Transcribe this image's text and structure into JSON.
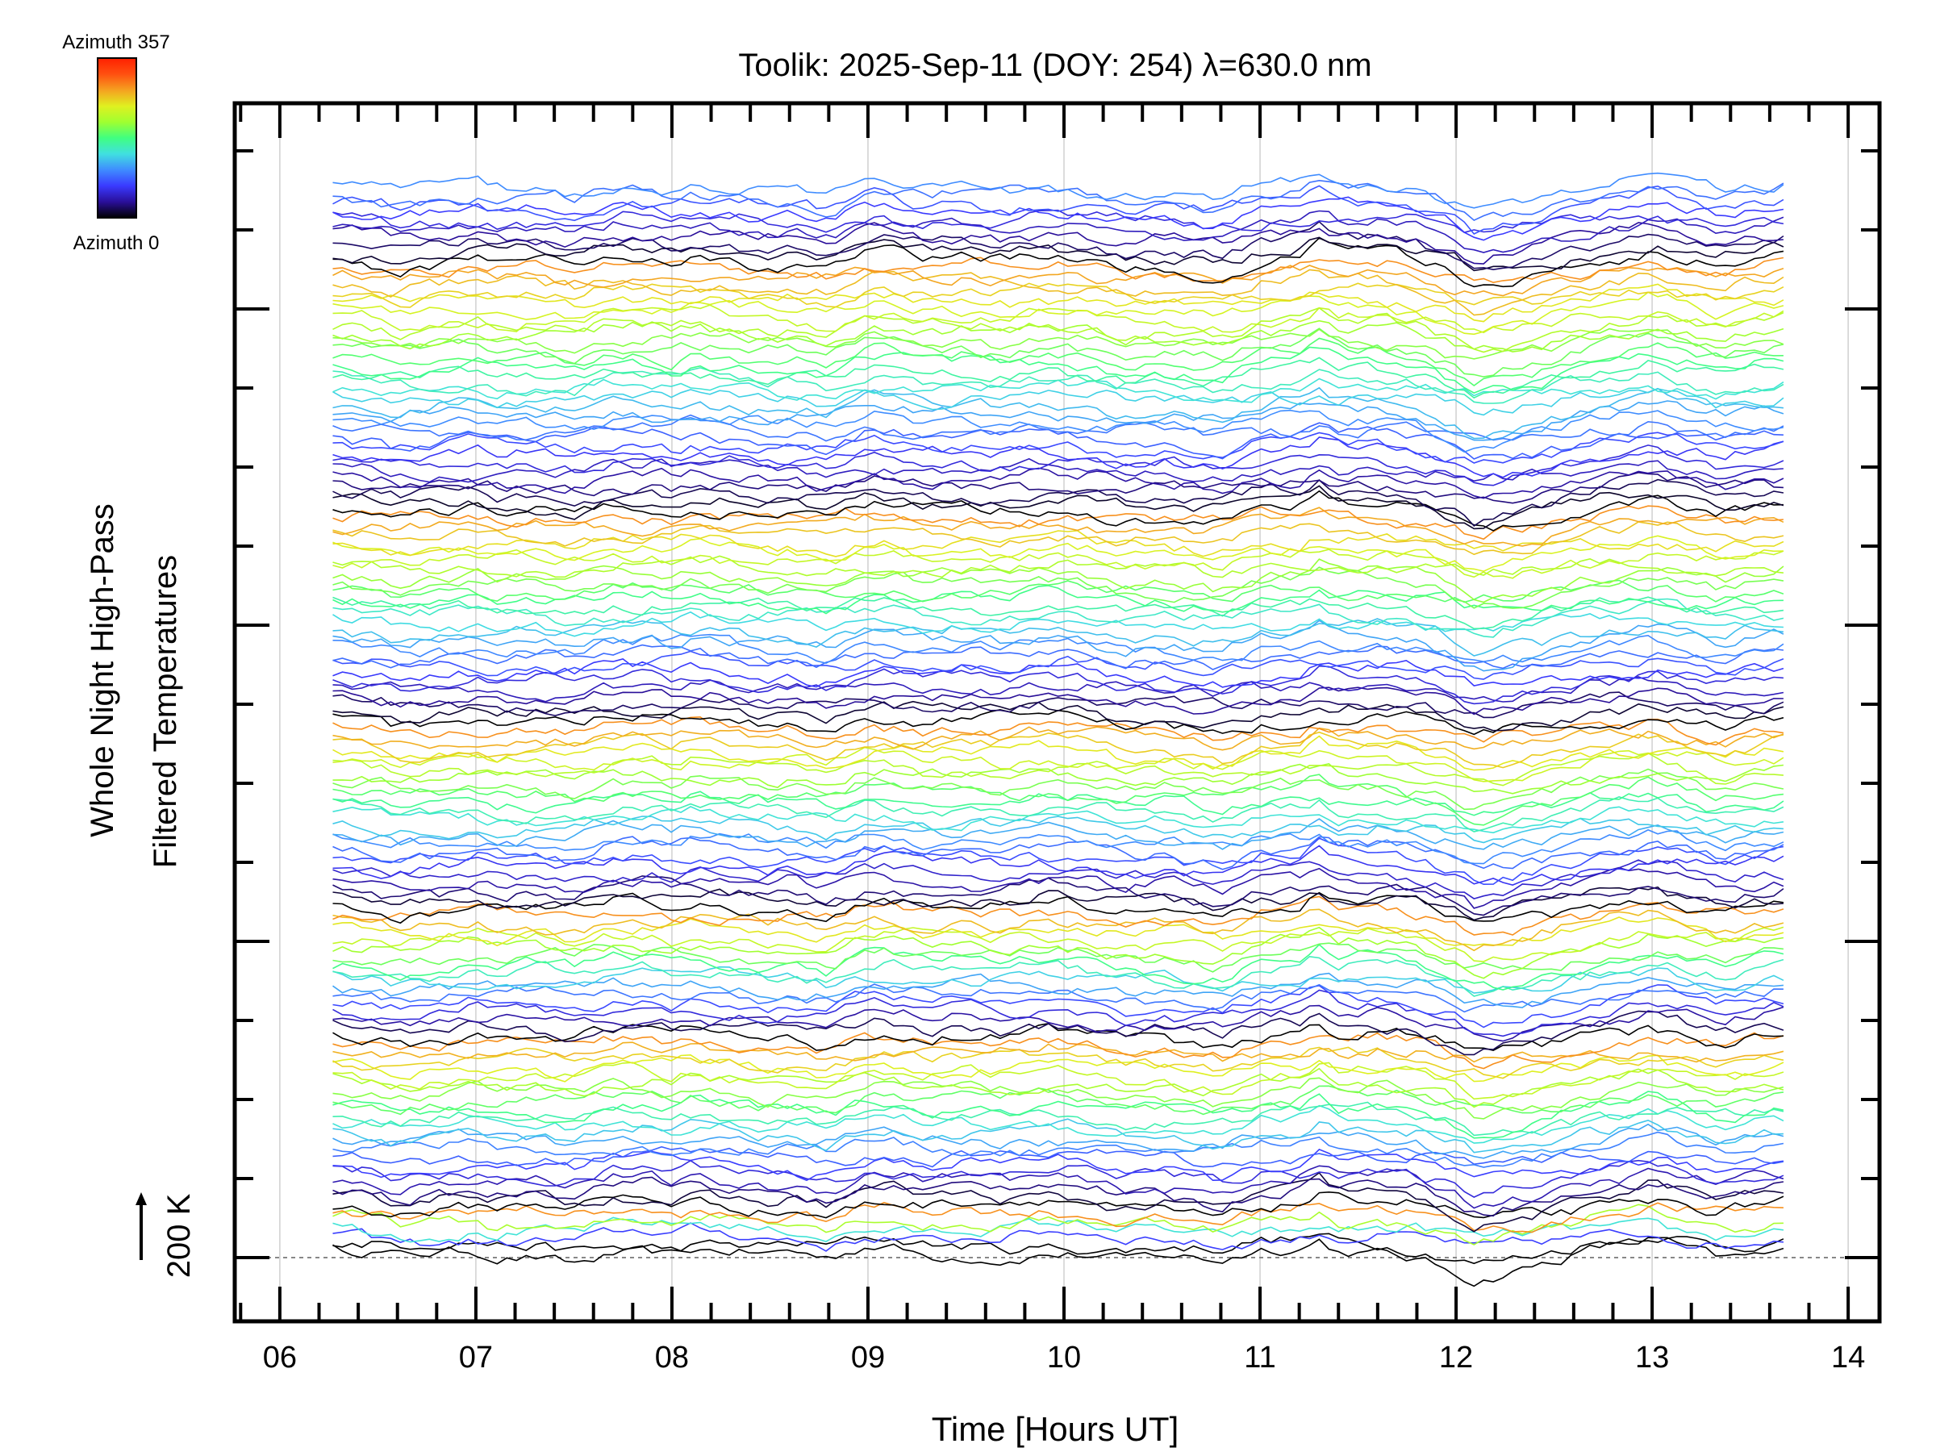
{
  "chart_data": {
    "type": "line",
    "title": "Toolik: 2025-Sep-11 (DOY: 254) λ=630.0 nm",
    "xlabel": "Time [Hours UT]",
    "ylabel_line1": "Whole Night High-Pass",
    "ylabel_line2": "Filtered Temperatures",
    "scale_label": "200 K",
    "scale_value_K": 200,
    "xlim": [
      5.77,
      14.16
    ],
    "x_ticks": [
      "06",
      "07",
      "08",
      "09",
      "10",
      "11",
      "12",
      "13",
      "14"
    ],
    "x_tick_values": [
      6,
      7,
      8,
      9,
      10,
      11,
      12,
      13,
      14
    ],
    "time_range_hours": [
      6.27,
      13.67
    ],
    "trace_offset_K": 26,
    "reference_line_K": 0,
    "grid": true,
    "colorbar": {
      "top_label": "Azimuth 357",
      "bottom_label": "Azimuth 0",
      "azimuth_range": [
        0,
        357
      ],
      "stops": [
        "#000000",
        "#2a0f9a",
        "#3a3aff",
        "#3f8cff",
        "#40e0e0",
        "#40ff80",
        "#a0ff30",
        "#e0f020",
        "#f5a020",
        "#ff5010",
        "#ff2000"
      ]
    },
    "ring_trace_counts": [
      1,
      5,
      21,
      16,
      23,
      26,
      31,
      10
    ],
    "common_signal": {
      "t": [
        6.27,
        6.5,
        6.6,
        6.8,
        7.0,
        7.1,
        7.3,
        7.5,
        7.7,
        7.9,
        8.0,
        8.1,
        8.3,
        8.5,
        8.6,
        8.8,
        9.0,
        9.1,
        9.3,
        9.5,
        9.7,
        9.9,
        10.1,
        10.3,
        10.5,
        10.7,
        10.8,
        11.0,
        11.2,
        11.3,
        11.4,
        11.6,
        11.8,
        12.0,
        12.1,
        12.3,
        12.5,
        12.7,
        12.9,
        13.0,
        13.2,
        13.35,
        13.5,
        13.67
      ],
      "K": [
        5,
        -10,
        -30,
        -15,
        0,
        -20,
        -10,
        -30,
        10,
        10,
        -5,
        15,
        0,
        -20,
        -10,
        -40,
        20,
        20,
        -10,
        0,
        -10,
        10,
        0,
        -30,
        -20,
        -40,
        -50,
        0,
        10,
        50,
        10,
        10,
        -10,
        -60,
        -100,
        -70,
        -40,
        0,
        20,
        40,
        0,
        -30,
        -10,
        10
      ]
    }
  }
}
